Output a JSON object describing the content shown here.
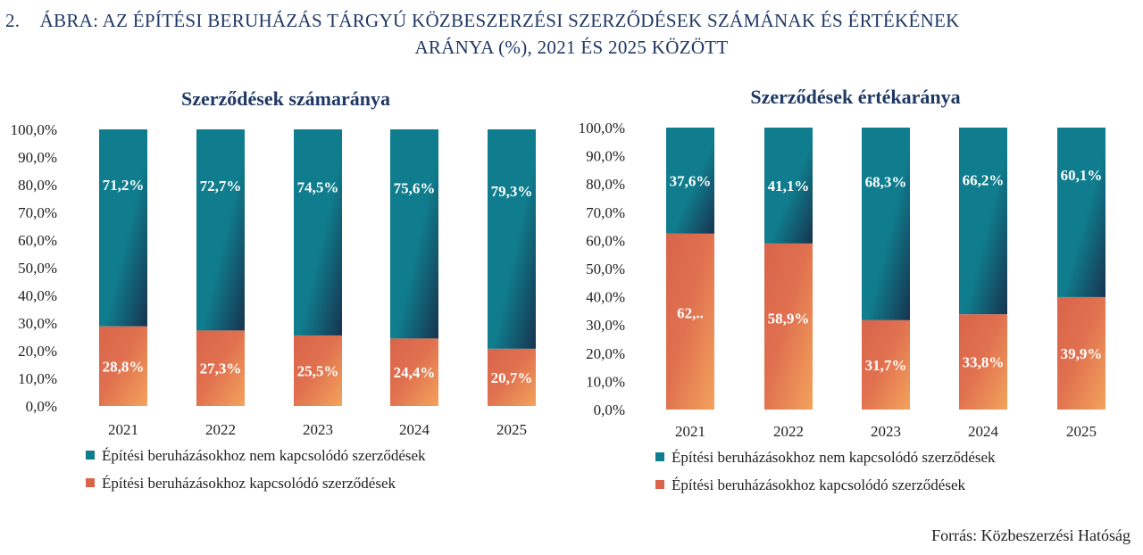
{
  "figure": {
    "number": "2.",
    "title_line1": "ÁBRA: AZ ÉPÍTÉSI BERUHÁZÁS TÁRGYÚ KÖZBESZERZÉSI SZERZŐDÉSEK SZÁMÁNAK ÉS ÉRTÉKÉNEK",
    "title_line2": "ARÁNYA (%), 2021 ÉS 2025 KÖZÖTT",
    "source": "Forrás: Közbeszerzési Hatóság"
  },
  "colors": {
    "teal": "#0f7d8d",
    "teal_dark": "#17334f",
    "orange": "#d9644a",
    "orange_light": "#f3a35c",
    "title_navy": "#1f3864"
  },
  "chart_data": [
    {
      "type": "bar",
      "stacked": true,
      "title": "Szerződések számaránya",
      "categories": [
        "2021",
        "2022",
        "2023",
        "2024",
        "2025"
      ],
      "ylim": [
        0,
        100
      ],
      "y_ticks": [
        "0,0%",
        "10,0%",
        "20,0%",
        "30,0%",
        "40,0%",
        "50,0%",
        "60,0%",
        "70,0%",
        "80,0%",
        "90,0%",
        "100,0%"
      ],
      "legend_position": "bottom",
      "grid": false,
      "series": [
        {
          "name": "Építési beruházásokhoz  kapcsolódó szerződések",
          "values": [
            28.8,
            27.3,
            25.5,
            24.4,
            20.7
          ],
          "labels": [
            "28,8%",
            "27,3%",
            "25,5%",
            "24,4%",
            "20,7%"
          ]
        },
        {
          "name": "Építési beruházásokhoz nem kapcsolódó szerződések",
          "values": [
            71.2,
            72.7,
            74.5,
            75.6,
            79.3
          ],
          "labels": [
            "71,2%",
            "72,7%",
            "74,5%",
            "75,6%",
            "79,3%"
          ]
        }
      ]
    },
    {
      "type": "bar",
      "stacked": true,
      "title": "Szerződések értékaránya",
      "categories": [
        "2021",
        "2022",
        "2023",
        "2024",
        "2025"
      ],
      "ylim": [
        0,
        100
      ],
      "y_ticks": [
        "0,0%",
        "10,0%",
        "20,0%",
        "30,0%",
        "40,0%",
        "50,0%",
        "60,0%",
        "70,0%",
        "80,0%",
        "90,0%",
        "100,0%"
      ],
      "legend_position": "bottom",
      "grid": false,
      "series": [
        {
          "name": "Építési beruházásokhoz  kapcsolódó szerződések",
          "values": [
            62.4,
            58.9,
            31.7,
            33.8,
            39.9
          ],
          "labels": [
            "62,..",
            "58,9%",
            "31,7%",
            "33,8%",
            "39,9%"
          ]
        },
        {
          "name": "Építési beruházásokhoz nem kapcsolódó szerződések",
          "values": [
            37.6,
            41.1,
            68.3,
            66.2,
            60.1
          ],
          "labels": [
            "37,6%",
            "41,1%",
            "68,3%",
            "66,2%",
            "60,1%"
          ]
        }
      ]
    }
  ]
}
